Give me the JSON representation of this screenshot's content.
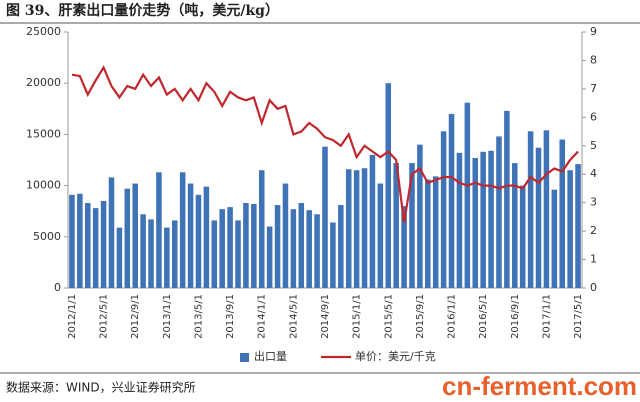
{
  "chart_data": {
    "type": "bar-line",
    "title": "图 39、肝素出口量价走势（吨，美元/kg）",
    "source": "数据来源：WIND，兴业证券研究所",
    "watermark": "cn-ferment.com",
    "categories": [
      "2012/1/1",
      null,
      null,
      null,
      "2012/5/1",
      null,
      null,
      null,
      "2012/9/1",
      null,
      null,
      null,
      "2013/1/1",
      null,
      null,
      null,
      "2013/5/1",
      null,
      null,
      null,
      "2013/9/1",
      null,
      null,
      null,
      "2014/1/1",
      null,
      null,
      null,
      "2014/5/1",
      null,
      null,
      null,
      "2014/9/1",
      null,
      null,
      null,
      "2015/1/1",
      null,
      null,
      null,
      "2015/5/1",
      null,
      null,
      null,
      "2015/9/1",
      null,
      null,
      null,
      "2016/1/1",
      null,
      null,
      null,
      "2016/5/1",
      null,
      null,
      null,
      "2016/9/1",
      null,
      null,
      null,
      "2017/1/1",
      null,
      null,
      null,
      "2017/5/1"
    ],
    "series": [
      {
        "name": "出口量",
        "type": "bar",
        "color": "#3f73b5",
        "values": [
          9100,
          9200,
          8300,
          7800,
          8500,
          10800,
          5900,
          9700,
          10200,
          7200,
          6700,
          11300,
          5900,
          6600,
          11300,
          10200,
          9100,
          9900,
          6600,
          7700,
          7900,
          6600,
          8300,
          8200,
          11500,
          6000,
          8100,
          10200,
          7700,
          8300,
          7600,
          7200,
          13800,
          6400,
          8100,
          11600,
          11500,
          11700,
          13000,
          10200,
          20000,
          12200,
          8000,
          12200,
          14000,
          10600,
          10900,
          15300,
          17000,
          13200,
          18100,
          12700,
          13300,
          13400,
          14800,
          17300,
          12200,
          10000,
          15300,
          13700,
          15400,
          9600,
          14500,
          11500,
          12100
        ]
      },
      {
        "name": "单价：美元/千克",
        "type": "line",
        "axis": "y2",
        "color": "#c0282e",
        "values": [
          7.5,
          7.45,
          6.8,
          7.3,
          7.75,
          7.1,
          6.7,
          7.1,
          7.0,
          7.5,
          7.1,
          7.4,
          6.8,
          7.0,
          6.6,
          7.0,
          6.6,
          7.2,
          6.9,
          6.4,
          6.9,
          6.7,
          6.6,
          6.7,
          5.8,
          6.6,
          6.3,
          6.4,
          5.4,
          5.5,
          5.8,
          5.6,
          5.3,
          5.2,
          5.0,
          5.4,
          4.6,
          5.0,
          4.8,
          4.6,
          4.8,
          4.5,
          2.3,
          4.0,
          4.2,
          3.7,
          3.8,
          3.9,
          3.9,
          3.7,
          3.6,
          3.7,
          3.6,
          3.6,
          3.5,
          3.6,
          3.6,
          3.5,
          3.9,
          3.7,
          4.0,
          4.2,
          4.1,
          4.5,
          4.8
        ]
      }
    ],
    "ylim": [
      0,
      25000
    ],
    "yticks": [
      0,
      5000,
      10000,
      15000,
      20000,
      25000
    ],
    "y2lim": [
      0,
      9
    ],
    "y2ticks": [
      0,
      1,
      2,
      3,
      4,
      5,
      6,
      7,
      8,
      9
    ],
    "grid": false,
    "legend": "bottom"
  }
}
